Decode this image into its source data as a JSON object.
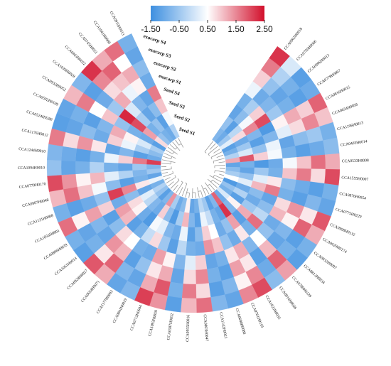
{
  "chart_data": {
    "type": "circular_heatmap",
    "series": [
      {
        "name": "Seed S1",
        "values": [
          -0.8,
          -1.0,
          -0.5,
          0.2,
          -1.2,
          -0.9,
          -0.3,
          1.2,
          -1.1,
          -0.7,
          -0.4,
          0.5,
          -1.3,
          -0.6,
          -0.9,
          0.1,
          -1.0,
          1.8,
          -0.8,
          -1.2,
          -0.5,
          -0.2,
          -0.9,
          -1.1,
          0.6,
          -0.7,
          -1.0,
          -0.4,
          1.4,
          -0.8,
          -1.2,
          -0.6,
          -0.3,
          -0.9,
          0.3,
          -1.1,
          -0.5,
          -0.8,
          2.1,
          -1.0,
          -0.7,
          -0.4,
          -1.2,
          0.8,
          -0.6,
          -0.9,
          -1.0,
          -0.3
        ]
      },
      {
        "name": "Seed S2",
        "values": [
          -0.6,
          -1.2,
          -0.2,
          0.8,
          -1.0,
          -0.5,
          0.1,
          1.9,
          -0.9,
          -1.1,
          -0.6,
          0.2,
          -1.0,
          -0.3,
          -1.2,
          0.6,
          -0.8,
          2.2,
          -1.1,
          -0.9,
          -0.1,
          0.3,
          -1.2,
          -0.8,
          1.1,
          -0.4,
          -1.3,
          -0.7,
          0.9,
          -1.0,
          -0.8,
          -0.2,
          0.2,
          -1.1,
          0.7,
          -0.9,
          -0.8,
          -0.5,
          1.6,
          -1.2,
          -0.4,
          0.1,
          -1.0,
          1.3,
          -0.9,
          -0.6,
          -1.2,
          0.4
        ]
      },
      {
        "name": "Seed S3",
        "values": [
          -1.1,
          -0.7,
          0.4,
          1.5,
          -0.8,
          -1.2,
          -0.6,
          0.9,
          -1.3,
          -0.5,
          0.2,
          1.1,
          -0.7,
          -1.0,
          -0.5,
          1.2,
          -1.2,
          1.3,
          -0.6,
          -1.0,
          0.5,
          0.9,
          -0.7,
          -1.2,
          0.3,
          -1.0,
          -0.8,
          0.2,
          0.4,
          -1.3,
          -1.0,
          0.6,
          0.8,
          -0.7,
          1.5,
          -1.2,
          -0.3,
          -1.1,
          0.9,
          -0.8,
          0.3,
          0.6,
          -0.9,
          2.0,
          -0.4,
          -1.1,
          -0.7,
          1.0
        ]
      },
      {
        "name": "Seed S4",
        "values": [
          -0.9,
          -0.4,
          0.9,
          2.0,
          -1.3,
          -0.8,
          0.3,
          0.4,
          -1.0,
          -0.9,
          0.7,
          1.6,
          -1.1,
          -0.7,
          -0.2,
          1.7,
          -0.9,
          0.7,
          -1.0,
          -0.6,
          1.0,
          1.4,
          -1.0,
          -0.9,
          -0.2,
          -1.2,
          -0.5,
          0.8,
          -0.1,
          -0.9,
          -1.2,
          1.1,
          1.3,
          -1.0,
          2.1,
          -0.7,
          0.2,
          -0.9,
          0.3,
          -1.1,
          0.9,
          1.2,
          -0.6,
          2.3,
          0.1,
          -0.8,
          -1.1,
          1.6
        ]
      },
      {
        "name": "exocarp S1",
        "values": [
          0.3,
          -1.0,
          -0.8,
          -0.5,
          0.6,
          0.2,
          -1.1,
          -0.9,
          0.4,
          1.0,
          -0.7,
          -0.9,
          0.8,
          1.1,
          -1.0,
          -0.6,
          0.5,
          -0.8,
          1.2,
          0.7,
          -0.9,
          -1.1,
          0.9,
          0.2,
          -0.8,
          0.6,
          1.3,
          -1.0,
          -0.9,
          0.5,
          0.8,
          -0.7,
          -1.2,
          0.9,
          -0.6,
          0.4,
          1.1,
          -0.3,
          -0.9,
          0.7,
          -1.0,
          -0.8,
          1.0,
          -0.5,
          1.2,
          0.3,
          0.6,
          -1.0
        ]
      },
      {
        "name": "exocarp S2",
        "values": [
          0.9,
          -0.6,
          -1.1,
          -0.9,
          1.2,
          0.8,
          -0.7,
          -1.2,
          1.0,
          1.6,
          -1.0,
          -1.2,
          1.4,
          0.6,
          -0.8,
          -1.1,
          1.1,
          -1.2,
          0.7,
          1.3,
          -1.2,
          -0.9,
          1.5,
          0.8,
          -1.1,
          1.2,
          0.7,
          -0.6,
          -1.2,
          1.1,
          1.4,
          -1.1,
          -0.8,
          1.3,
          -1.0,
          1.0,
          0.6,
          -0.9,
          -1.2,
          1.4,
          -0.7,
          -1.2,
          0.5,
          -1.0,
          0.8,
          1.0,
          1.2,
          -0.7
        ]
      },
      {
        "name": "exocarp S3",
        "values": [
          1.6,
          -0.3,
          -0.9,
          -1.2,
          0.9,
          1.5,
          -0.5,
          -1.0,
          1.7,
          0.8,
          -1.2,
          -0.8,
          0.7,
          1.8,
          -1.2,
          -0.9,
          1.8,
          -1.0,
          1.5,
          0.6,
          -0.8,
          -1.2,
          0.8,
          1.6,
          -0.9,
          1.9,
          1.2,
          -1.1,
          -0.8,
          1.8,
          0.7,
          -0.9,
          -1.1,
          0.6,
          -1.2,
          1.7,
          1.4,
          -1.1,
          -1.0,
          0.8,
          -1.1,
          -0.9,
          1.6,
          -1.2,
          1.5,
          1.8,
          0.5,
          -1.1
        ]
      },
      {
        "name": "exocarp S4",
        "values": [
          2.2,
          0.1,
          -1.2,
          -1.0,
          1.8,
          1.0,
          -0.9,
          -0.7,
          1.2,
          2.0,
          -0.9,
          -1.1,
          1.9,
          1.2,
          -0.9,
          -1.2,
          1.3,
          -0.7,
          2.0,
          1.5,
          -1.1,
          -0.8,
          1.7,
          1.1,
          -1.2,
          1.4,
          2.1,
          -0.8,
          -1.1,
          1.2,
          1.9,
          -1.2,
          -0.9,
          1.7,
          -0.9,
          1.1,
          2.0,
          -0.6,
          -0.8,
          1.6,
          -1.2,
          -1.1,
          1.1,
          -0.8,
          2.2,
          1.2,
          1.7,
          -0.9
        ]
      }
    ],
    "categories": [
      "CCA0962H0018",
      "CCA0750H0066",
      "CCA0996H0013",
      "CCA0778H0067",
      "CCA0816H0015",
      "CCA0634H0058",
      "CCA1196H0013",
      "CCA0403H0014",
      "CCA0533H0008",
      "CCA1555H0007",
      "CCA0876H0054",
      "CCA0775H0229",
      "CCA0998H0132",
      "CCA0629H0174",
      "CCA0932H0007",
      "CCA0813H0034",
      "CCA0789H0129",
      "CCA0914H0026",
      "CCA1025H0035",
      "CCA0761H0110",
      "CCA0690H0088",
      "CCA1142H0021",
      "CCA0803H0047",
      "CCA0955H0016",
      "CCA0587H0032",
      "CCA1093H0059",
      "CCA0712H0044",
      "CCA0841H0019",
      "CCA1177H0003",
      "CCA0654H0071",
      "CCA0928H0027",
      "CCA1061H0014",
      "CCA0896H0039",
      "CCA1056H0001",
      "CCA1131H0008",
      "CCA0907H0048",
      "CCA0779H0170",
      "CCA1094H0010",
      "CCA1244H0010",
      "CCA1176H0012",
      "CCA0524H0280",
      "CCA0592H0109",
      "CCA0932H0052",
      "CCA1039H0029",
      "CCA0863H0022",
      "CCA0745H0051",
      "CCA1041H0068",
      "CCA0910H0013"
    ],
    "colorlim": [
      -1.5,
      2.5
    ],
    "colors": [
      "#3d8fe0",
      "#ffffff",
      "#d20f2b"
    ],
    "cticks": [
      {
        "value": -1.5,
        "label": "-1.50"
      },
      {
        "value": -0.5,
        "label": "-0.50"
      },
      {
        "value": 0.5,
        "label": "0.50"
      },
      {
        "value": 1.5,
        "label": "1.50"
      },
      {
        "value": 2.5,
        "label": "2.50"
      }
    ]
  }
}
